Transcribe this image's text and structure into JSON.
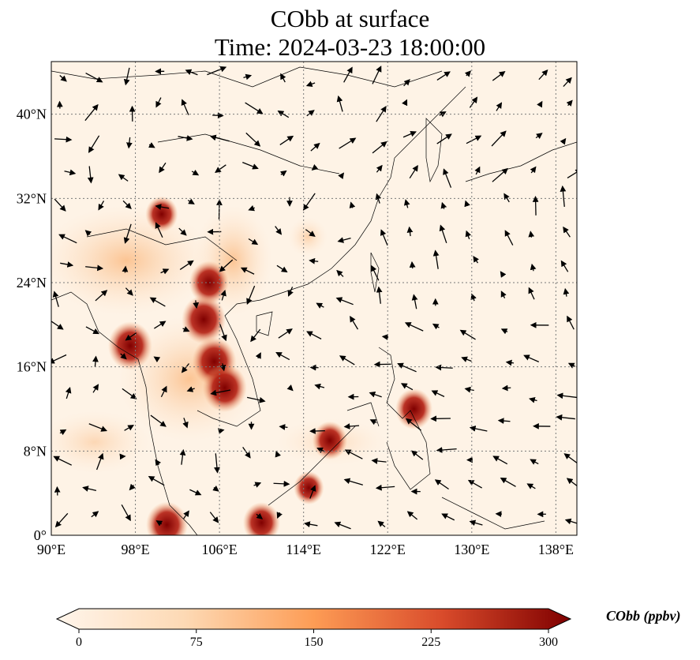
{
  "title": {
    "line1": "CObb at surface",
    "line2": "Time: 2024-03-23 18:00:00"
  },
  "axes": {
    "lon_ticks": [
      "90°E",
      "98°E",
      "106°E",
      "114°E",
      "122°E",
      "130°E",
      "138°E"
    ],
    "lat_ticks": [
      "0°",
      "8°N",
      "16°N",
      "24°N",
      "32°N",
      "40°N"
    ],
    "lon_values": [
      90,
      98,
      106,
      114,
      122,
      130,
      138
    ],
    "lat_values": [
      0,
      8,
      16,
      24,
      32,
      40
    ],
    "lon_range": [
      90,
      140
    ],
    "lat_range": [
      0,
      45
    ],
    "gridlines": "dotted"
  },
  "colorbar": {
    "label": "CObb (ppbv)",
    "ticks": [
      "0",
      "75",
      "150",
      "225",
      "300"
    ],
    "range": [
      0,
      300
    ],
    "extend": "both",
    "colors": [
      "#fff5eb",
      "#fdd9b4",
      "#fda762",
      "#f16813",
      "#c41e3a",
      "#7f0000"
    ]
  },
  "hotspots": [
    {
      "lon": 104.5,
      "lat": 20.5,
      "ppbv": 300
    },
    {
      "lon": 105.5,
      "lat": 16.5,
      "ppbv": 300
    },
    {
      "lon": 106.5,
      "lat": 14.0,
      "ppbv": 300
    },
    {
      "lon": 97.5,
      "lat": 18.0,
      "ppbv": 300
    },
    {
      "lon": 105.0,
      "lat": 24.0,
      "ppbv": 260
    },
    {
      "lon": 101.0,
      "lat": 1.0,
      "ppbv": 280
    },
    {
      "lon": 110.0,
      "lat": 1.2,
      "ppbv": 240
    },
    {
      "lon": 116.5,
      "lat": 9.0,
      "ppbv": 220
    },
    {
      "lon": 124.5,
      "lat": 12.0,
      "ppbv": 240
    },
    {
      "lon": 114.5,
      "lat": 4.5,
      "ppbv": 180
    },
    {
      "lon": 100.5,
      "lat": 30.5,
      "ppbv": 200
    }
  ]
}
